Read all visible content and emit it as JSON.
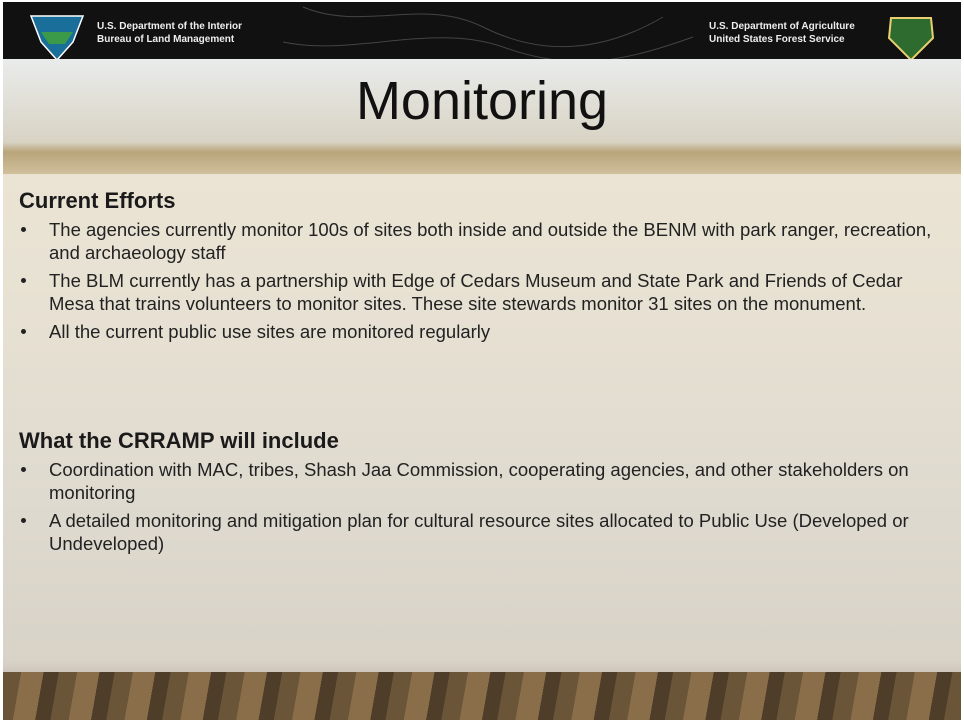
{
  "header": {
    "left": [
      "U.S. Department of the Interior",
      "Bureau of Land Management"
    ],
    "right": [
      "U.S. Department of Agriculture",
      "United States Forest Service"
    ]
  },
  "title": "Monitoring",
  "sections": [
    {
      "heading": "Current Efforts",
      "bullets": [
        "The agencies currently monitor 100s of sites both inside and outside the BENM with park ranger, recreation, and archaeology staff",
        "The BLM currently has a partnership with Edge of Cedars Museum and State Park and Friends of Cedar Mesa that trains volunteers to monitor sites. These site stewards monitor 31 sites on the monument.",
        "All the current public use sites are monitored regularly"
      ]
    },
    {
      "heading": "What the CRRAMP will include",
      "bullets": [
        "Coordination with MAC, tribes, Shash Jaa Commission, cooperating agencies, and other stakeholders  on monitoring",
        "A detailed monitoring and mitigation plan for cultural resource sites allocated to Public Use (Developed or Undeveloped)"
      ]
    }
  ]
}
